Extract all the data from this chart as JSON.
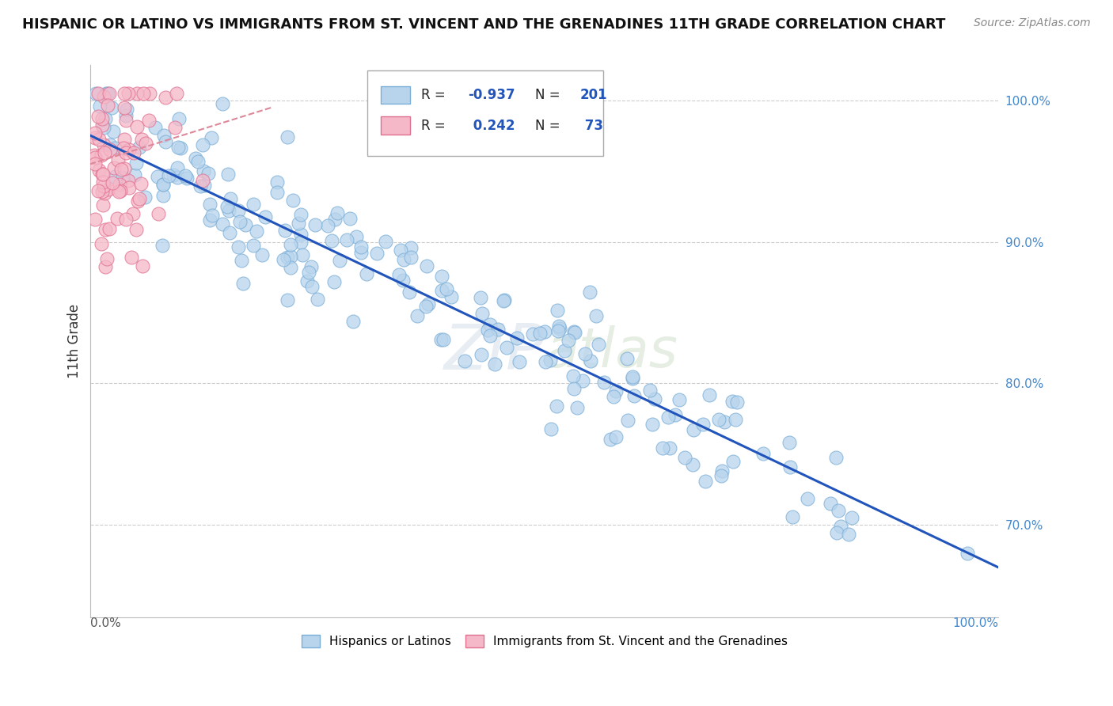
{
  "title": "HISPANIC OR LATINO VS IMMIGRANTS FROM ST. VINCENT AND THE GRENADINES 11TH GRADE CORRELATION CHART",
  "source": "Source: ZipAtlas.com",
  "ylabel": "11th Grade",
  "ytick_labels": [
    "100.0%",
    "90.0%",
    "80.0%",
    "70.0%"
  ],
  "ytick_values": [
    1.0,
    0.9,
    0.8,
    0.7
  ],
  "xlim": [
    0.0,
    1.0
  ],
  "ylim": [
    0.635,
    1.025
  ],
  "blue_color": "#b8d4ed",
  "blue_edge": "#7aaed6",
  "pink_color": "#f5b8c8",
  "pink_edge": "#e07090",
  "trendline_blue": "#2255bb",
  "trendline_pink": "#dd8899",
  "background_color": "#ffffff",
  "grid_color": "#cccccc",
  "title_fontsize": 13,
  "blue_intercept": 0.975,
  "blue_slope": -0.305,
  "pink_intercept": 0.955,
  "pink_slope": 0.2,
  "seed": 12
}
